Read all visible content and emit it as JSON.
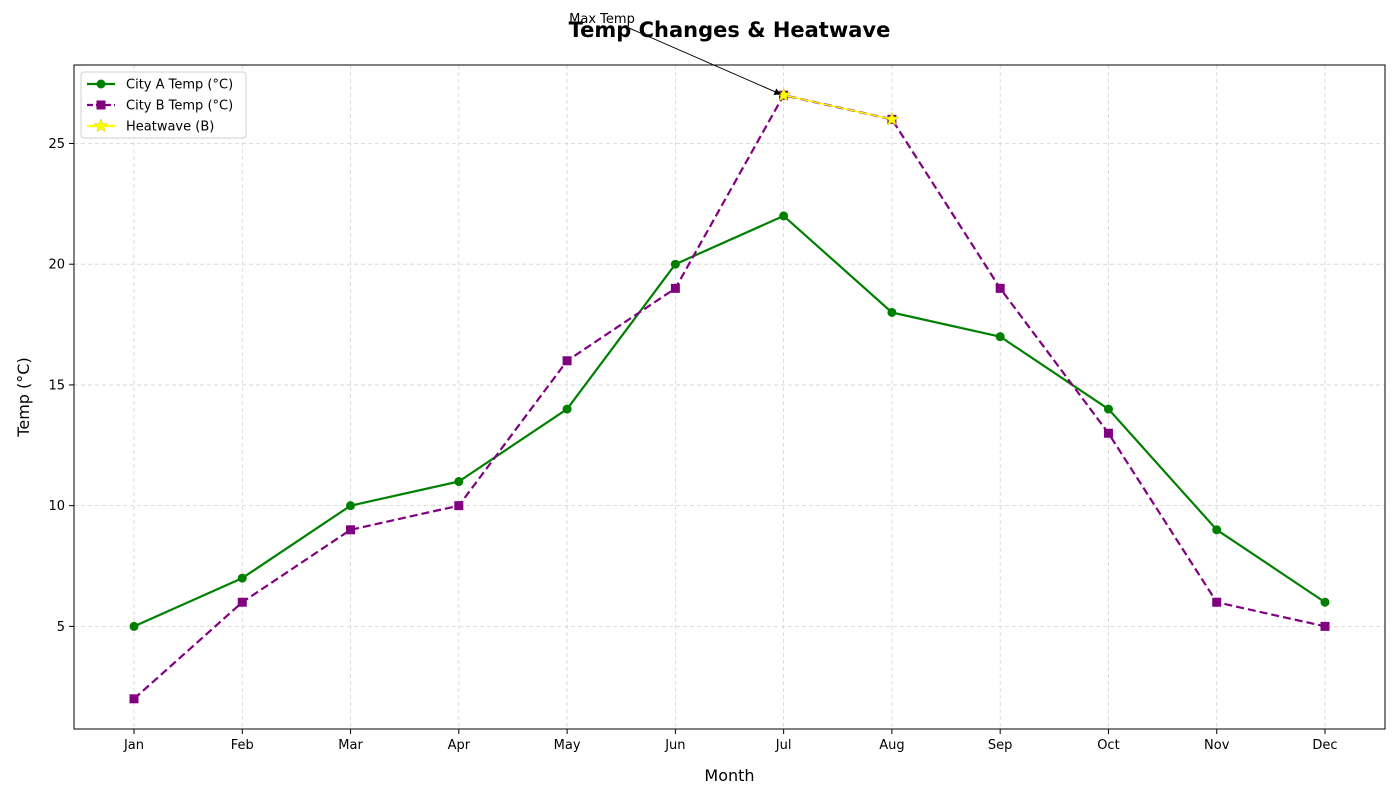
{
  "chart_data": {
    "type": "line",
    "title": "Temp Changes & Heatwave",
    "xlabel": "Month",
    "ylabel": "Temp (°C)",
    "categories": [
      "Jan",
      "Feb",
      "Mar",
      "Apr",
      "May",
      "Jun",
      "Jul",
      "Aug",
      "Sep",
      "Oct",
      "Nov",
      "Dec"
    ],
    "ylim": [
      0.75,
      28.25
    ],
    "yticks": [
      5,
      10,
      15,
      20,
      25
    ],
    "grid": true,
    "legend_position": "upper-left",
    "series": [
      {
        "name": "City A Temp (°C)",
        "color": "#008000",
        "line_style": "solid",
        "marker": "circle",
        "values": [
          5,
          7,
          10,
          11,
          14,
          20,
          22,
          18,
          17,
          14,
          9,
          6
        ]
      },
      {
        "name": "City B Temp (°C)",
        "color": "#800080",
        "line_style": "dashed",
        "marker": "square",
        "values": [
          2,
          6,
          9,
          10,
          16,
          19,
          27,
          26,
          19,
          13,
          6,
          5
        ]
      },
      {
        "name": "Heatwave (B)",
        "color": "#ffff00",
        "line_style": "solid",
        "marker": "star",
        "points": [
          {
            "x": "Jul",
            "y": 27
          },
          {
            "x": "Aug",
            "y": 26
          }
        ]
      }
    ],
    "annotations": [
      {
        "text": "Max Temp",
        "target": {
          "x": "Jul",
          "y": 27
        }
      }
    ]
  }
}
